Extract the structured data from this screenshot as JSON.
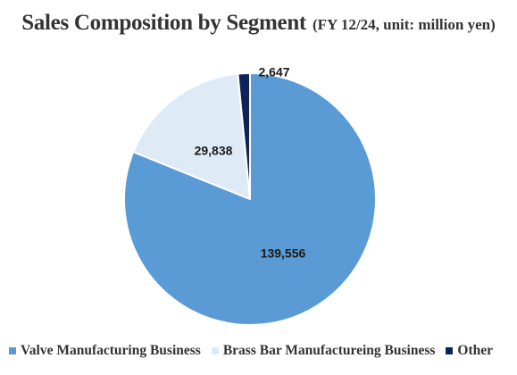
{
  "chart_data": {
    "type": "pie",
    "title": "Sales Composition by Segment",
    "subtitle": "(FY 12/24, unit: million yen)",
    "series": [
      {
        "name": "Valve Manufacturing Business",
        "value": 139556,
        "label": "139,556",
        "color": "#5b9bd5"
      },
      {
        "name": "Brass Bar Manufactureing Business",
        "value": 29838,
        "label": "29,838",
        "color": "#deebf7"
      },
      {
        "name": "Other",
        "value": 2647,
        "label": "2,647",
        "color": "#0d2458"
      }
    ],
    "legend_position": "bottom"
  }
}
